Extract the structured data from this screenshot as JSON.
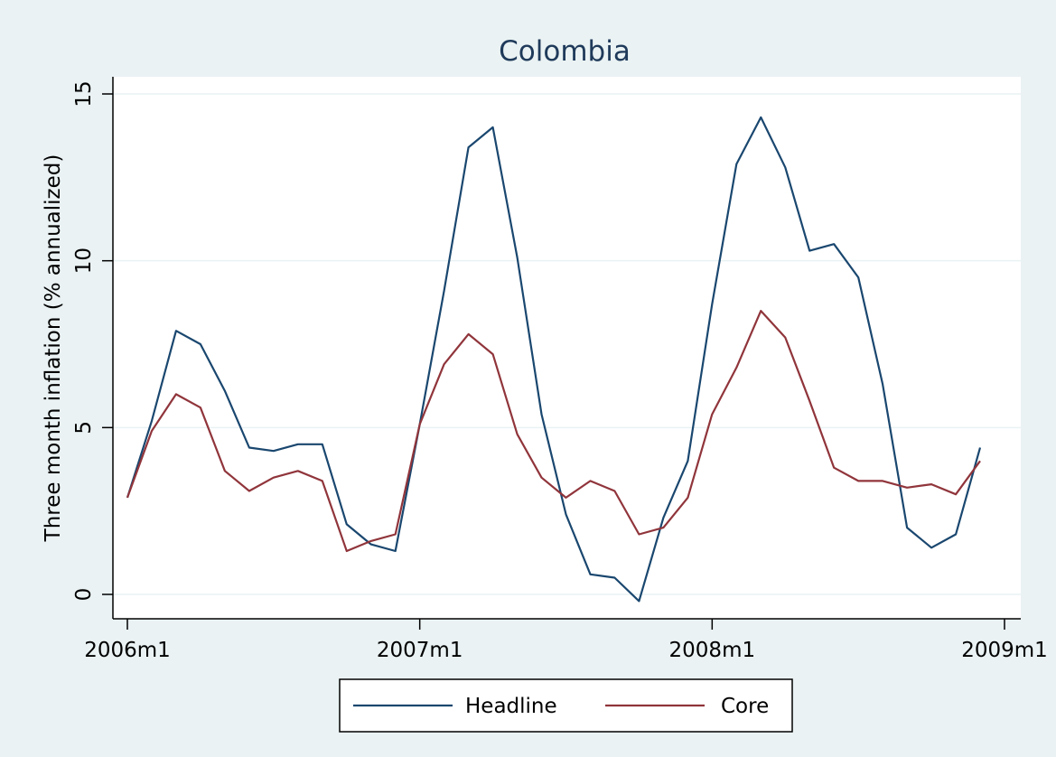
{
  "chart_data": {
    "type": "line",
    "title": "Colombia",
    "ylabel": "Three month inflation (% annualized)",
    "xlabel": "",
    "ylim": [
      0,
      15
    ],
    "yticks": [
      0,
      5,
      10,
      15
    ],
    "xlim": [
      "2006m1",
      "2009m1"
    ],
    "xticks": [
      "2006m1",
      "2007m1",
      "2008m1",
      "2009m1"
    ],
    "x": [
      "2006m1",
      "2006m2",
      "2006m3",
      "2006m4",
      "2006m5",
      "2006m6",
      "2006m7",
      "2006m8",
      "2006m9",
      "2006m10",
      "2006m11",
      "2006m12",
      "2007m1",
      "2007m2",
      "2007m3",
      "2007m4",
      "2007m5",
      "2007m6",
      "2007m7",
      "2007m8",
      "2007m9",
      "2007m10",
      "2007m11",
      "2007m12",
      "2008m1",
      "2008m2",
      "2008m3",
      "2008m4",
      "2008m5",
      "2008m6",
      "2008m7",
      "2008m8",
      "2008m9",
      "2008m10",
      "2008m11",
      "2008m12"
    ],
    "grid": true,
    "legend_position": "bottom",
    "series": [
      {
        "name": "Headline",
        "color": "#1a476f",
        "values": [
          2.9,
          5.2,
          7.9,
          7.5,
          6.1,
          4.4,
          4.3,
          4.5,
          4.5,
          2.1,
          1.5,
          1.3,
          5.1,
          9.1,
          13.4,
          14.0,
          10.1,
          5.4,
          2.4,
          0.6,
          0.5,
          -0.2,
          2.3,
          4.0,
          8.7,
          12.9,
          14.3,
          12.8,
          10.3,
          10.5,
          9.5,
          6.3,
          2.0,
          1.4,
          1.8,
          4.4
        ]
      },
      {
        "name": "Core",
        "color": "#90353b",
        "values": [
          2.9,
          4.9,
          6.0,
          5.6,
          3.7,
          3.1,
          3.5,
          3.7,
          3.4,
          1.3,
          1.6,
          1.8,
          5.1,
          6.9,
          7.8,
          7.2,
          4.8,
          3.5,
          2.9,
          3.4,
          3.1,
          1.8,
          2.0,
          2.9,
          5.4,
          6.8,
          8.5,
          7.7,
          5.8,
          3.8,
          3.4,
          3.4,
          3.2,
          3.3,
          3.0,
          4.0
        ]
      }
    ]
  }
}
